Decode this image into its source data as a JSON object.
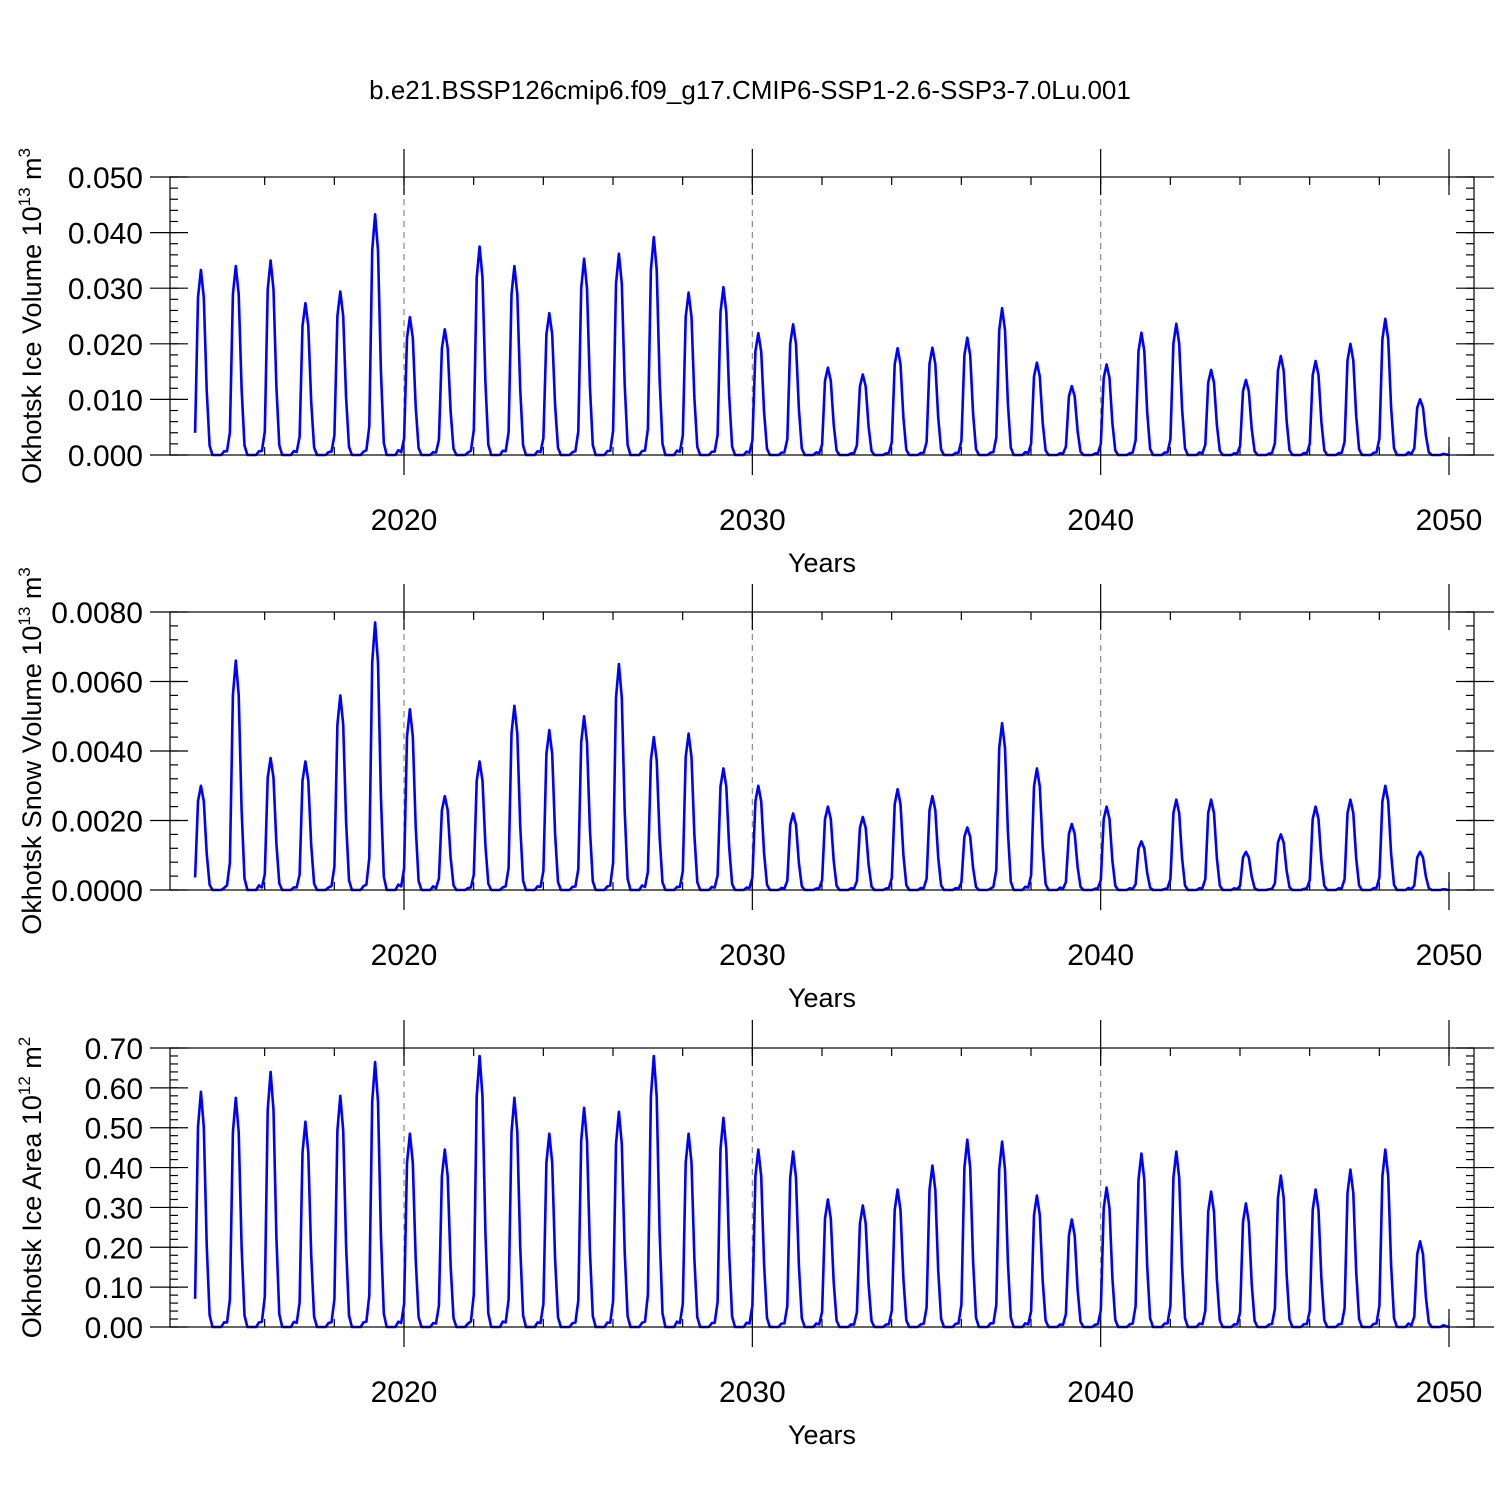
{
  "figure_title": "b.e21.BSSP126cmip6.f09_g17.CMIP6-SSP1-2.6-SSP3-7.0Lu.001",
  "colors": {
    "series": "#0000ff",
    "grid": "#888888"
  },
  "chart_data": [
    {
      "type": "line",
      "title": "b.e21.BSSP126cmip6.f09_g17.CMIP6-SSP1-2.6-SSP3-7.0Lu.001",
      "ylabel": "Okhotsk Ice Volume 10",
      "ylabel_sup": "13",
      "ylabel_unit": "m",
      "ylabel_unit_sup": "3",
      "xlabel": "Years",
      "xlim": [
        2014,
        2050
      ],
      "ylim": [
        0,
        0.05
      ],
      "yticks": [
        0.0,
        0.01,
        0.02,
        0.03,
        0.04,
        0.05
      ],
      "ytick_labels": [
        "0.000",
        "0.010",
        "0.020",
        "0.030",
        "0.040",
        "0.050"
      ],
      "xticks": [
        2020,
        2030,
        2040,
        2050
      ],
      "xtick_labels": [
        "2020",
        "2030",
        "2040",
        "2050"
      ],
      "grid_x": [
        2020,
        2030,
        2040
      ],
      "series": [
        {
          "name": "Okhotsk Ice Volume",
          "color": "#0000ff",
          "start_year": 2014,
          "peak_offset": 0.17,
          "annual_peaks": [
            0.0333,
            0.034,
            0.035,
            0.0273,
            0.0294,
            0.0433,
            0.0248,
            0.0226,
            0.0375,
            0.034,
            0.0255,
            0.0353,
            0.0362,
            0.0392,
            0.0292,
            0.0302,
            0.0219,
            0.0235,
            0.0157,
            0.0145,
            0.0192,
            0.0193,
            0.0211,
            0.0264,
            0.0166,
            0.0124,
            0.0163,
            0.022,
            0.0236,
            0.0153,
            0.0135,
            0.0178,
            0.0169,
            0.02,
            0.0245,
            0.01
          ]
        }
      ]
    },
    {
      "type": "line",
      "ylabel": "Okhotsk Snow Volume 10",
      "ylabel_sup": "13",
      "ylabel_unit": "m",
      "ylabel_unit_sup": "3",
      "xlabel": "Years",
      "xlim": [
        2014,
        2050
      ],
      "ylim": [
        0,
        0.008
      ],
      "yticks": [
        0.0,
        0.002,
        0.004,
        0.006,
        0.008
      ],
      "ytick_labels": [
        "0.0000",
        "0.0020",
        "0.0040",
        "0.0060",
        "0.0080"
      ],
      "xticks": [
        2020,
        2030,
        2040,
        2050
      ],
      "xtick_labels": [
        "2020",
        "2030",
        "2040",
        "2050"
      ],
      "grid_x": [
        2020,
        2030,
        2040
      ],
      "series": [
        {
          "name": "Okhotsk Snow Volume",
          "color": "#0000ff",
          "start_year": 2014,
          "peak_offset": 0.17,
          "annual_peaks": [
            0.003,
            0.0066,
            0.0038,
            0.0037,
            0.0056,
            0.0077,
            0.0052,
            0.0027,
            0.0037,
            0.0053,
            0.0046,
            0.005,
            0.0065,
            0.0044,
            0.0045,
            0.0035,
            0.003,
            0.0022,
            0.0024,
            0.0021,
            0.0029,
            0.0027,
            0.0018,
            0.0048,
            0.0035,
            0.0019,
            0.0024,
            0.0014,
            0.0026,
            0.0026,
            0.0011,
            0.0016,
            0.0024,
            0.0026,
            0.003,
            0.0011
          ]
        }
      ]
    },
    {
      "type": "line",
      "ylabel": "Okhotsk Ice Area 10",
      "ylabel_sup": "12",
      "ylabel_unit": "m",
      "ylabel_unit_sup": "2",
      "xlabel": "Years",
      "xlim": [
        2014,
        2050
      ],
      "ylim": [
        0,
        0.7
      ],
      "yticks": [
        0.0,
        0.1,
        0.2,
        0.3,
        0.4,
        0.5,
        0.6,
        0.7
      ],
      "ytick_labels": [
        "0.00",
        "0.10",
        "0.20",
        "0.30",
        "0.40",
        "0.50",
        "0.60",
        "0.70"
      ],
      "xticks": [
        2020,
        2030,
        2040,
        2050
      ],
      "xtick_labels": [
        "2020",
        "2030",
        "2040",
        "2050"
      ],
      "grid_x": [
        2020,
        2030,
        2040
      ],
      "series": [
        {
          "name": "Okhotsk Ice Area",
          "color": "#0000ff",
          "start_year": 2014,
          "peak_offset": 0.17,
          "annual_peaks": [
            0.59,
            0.575,
            0.64,
            0.515,
            0.58,
            0.665,
            0.485,
            0.445,
            0.68,
            0.575,
            0.485,
            0.55,
            0.54,
            0.68,
            0.485,
            0.525,
            0.445,
            0.44,
            0.32,
            0.305,
            0.345,
            0.405,
            0.47,
            0.465,
            0.33,
            0.27,
            0.35,
            0.435,
            0.44,
            0.34,
            0.31,
            0.38,
            0.345,
            0.395,
            0.445,
            0.215
          ]
        }
      ]
    }
  ]
}
